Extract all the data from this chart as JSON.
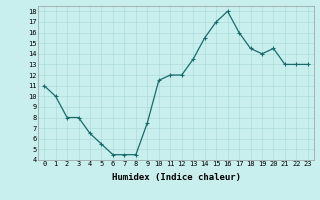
{
  "x": [
    0,
    1,
    2,
    3,
    4,
    5,
    6,
    7,
    8,
    9,
    10,
    11,
    12,
    13,
    14,
    15,
    16,
    17,
    18,
    19,
    20,
    21,
    22,
    23
  ],
  "y": [
    11,
    10,
    8,
    8,
    6.5,
    5.5,
    4.5,
    4.5,
    4.5,
    7.5,
    11.5,
    12,
    12,
    13.5,
    15.5,
    17,
    18,
    16,
    14.5,
    14,
    14.5,
    13,
    13,
    13
  ],
  "line_color": "#1a6b6b",
  "marker": "+",
  "marker_size": 3,
  "marker_lw": 0.8,
  "line_width": 0.9,
  "bg_color": "#c8eeee",
  "grid_color": "#a8d8d8",
  "xlabel": "Humidex (Indice chaleur)",
  "xlim": [
    -0.5,
    23.5
  ],
  "ylim": [
    4,
    18.5
  ],
  "yticks": [
    4,
    5,
    6,
    7,
    8,
    9,
    10,
    11,
    12,
    13,
    14,
    15,
    16,
    17,
    18
  ],
  "xticks": [
    0,
    1,
    2,
    3,
    4,
    5,
    6,
    7,
    8,
    9,
    10,
    11,
    12,
    13,
    14,
    15,
    16,
    17,
    18,
    19,
    20,
    21,
    22,
    23
  ],
  "tick_fontsize": 5,
  "xlabel_fontsize": 6.5,
  "xlabel_fontweight": "bold"
}
